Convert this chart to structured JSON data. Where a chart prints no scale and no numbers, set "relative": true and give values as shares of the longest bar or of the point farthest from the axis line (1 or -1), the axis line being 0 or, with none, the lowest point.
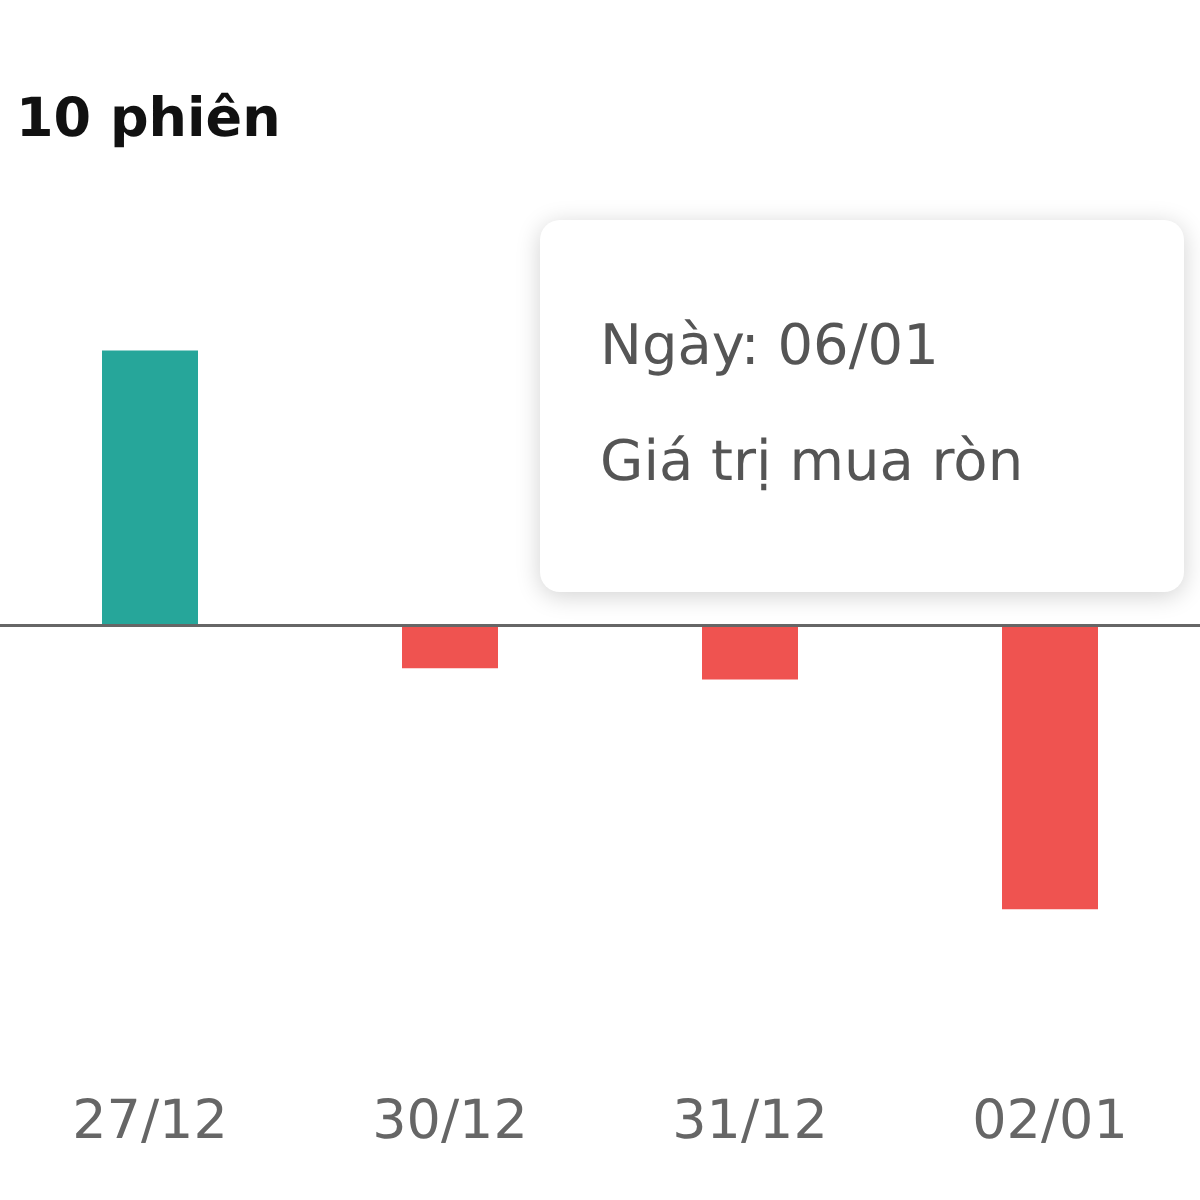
{
  "chart_data": {
    "type": "bar",
    "title": "10 phiên",
    "relative": true,
    "categories": [
      "27/12",
      "30/12",
      "31/12",
      "02/01"
    ],
    "values": [
      0.97,
      -0.15,
      -0.19,
      -1
    ],
    "colors": [
      "#26a69a",
      "#ef5350",
      "#ef5350",
      "#ef5350"
    ],
    "annotations": [
      "Ngày: 06/01",
      "Giá trị mua ròn"
    ]
  }
}
